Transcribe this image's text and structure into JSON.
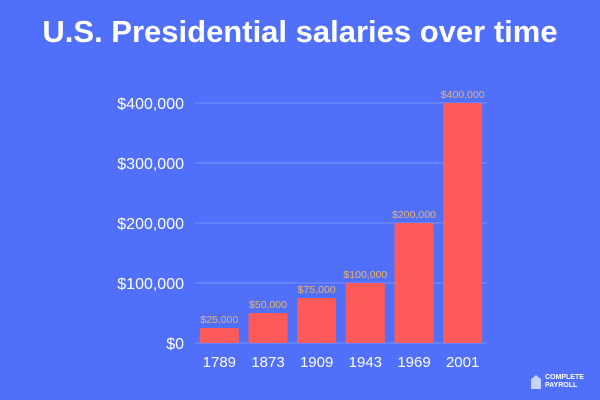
{
  "title": "U.S. Presidential salaries over time",
  "logo": {
    "line1": "COMPLETE",
    "line2": "PAYROLL"
  },
  "colors": {
    "background": "#5070fc",
    "bar": "#ff5a5a",
    "data_label": "#e9b56a",
    "grid": "#7b93ff",
    "text": "#ffffff"
  },
  "chart_data": {
    "type": "bar",
    "title": "U.S. Presidential salaries over time",
    "categories": [
      "1789",
      "1873",
      "1909",
      "1943",
      "1969",
      "2001"
    ],
    "values": [
      25000,
      50000,
      75000,
      100000,
      200000,
      400000
    ],
    "data_labels": [
      "$25,000",
      "$50,000",
      "$75,000",
      "$100,000",
      "$200,000",
      "$400,000"
    ],
    "ylim": [
      0,
      400000
    ],
    "yticks": [
      0,
      100000,
      200000,
      300000,
      400000
    ],
    "ytick_labels": [
      "$0",
      "$100,000",
      "$200,000",
      "$300,000",
      "$400,000"
    ],
    "grid": true,
    "xlabel": "",
    "ylabel": ""
  }
}
